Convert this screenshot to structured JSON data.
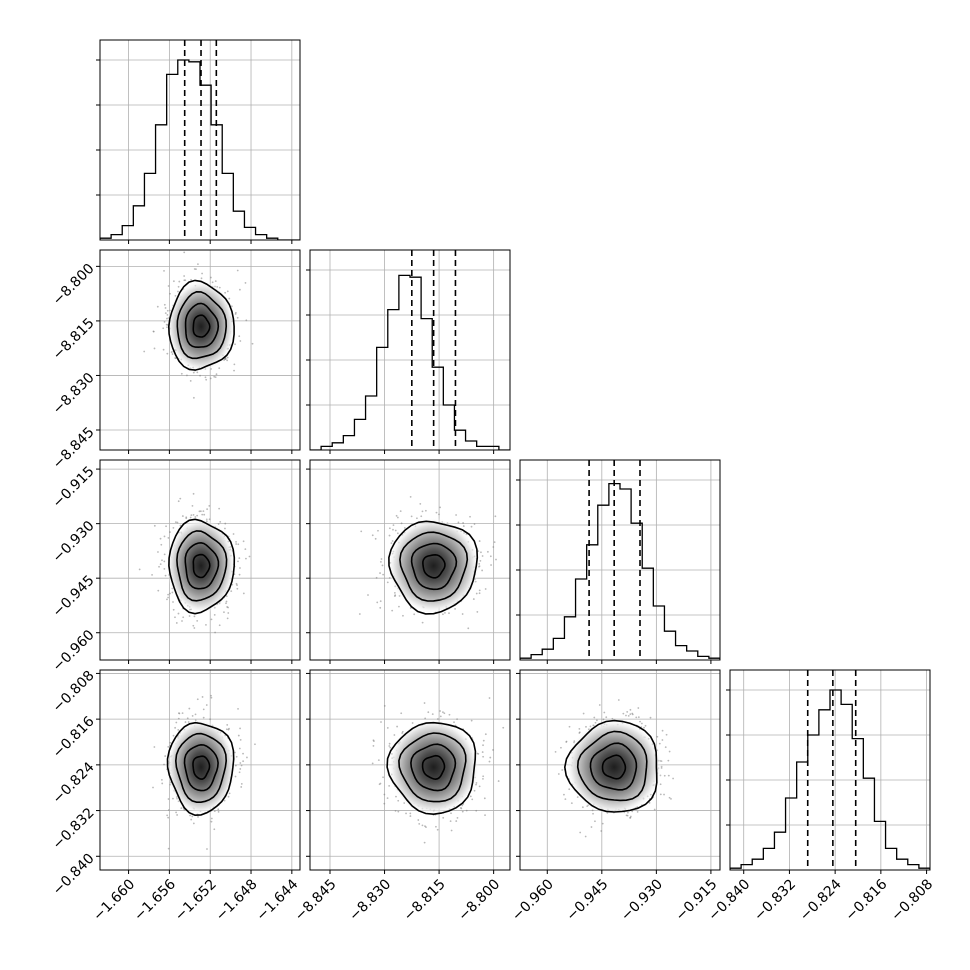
{
  "chart_data": {
    "type": "corner",
    "description_of_panels": "lower-triangular matrix of 1D histograms and 2D density contour plots",
    "parameters": [
      {
        "name": "",
        "range": [
          -1.6628,
          -1.6432
        ],
        "ticks": [
          -1.66,
          -1.656,
          -1.652,
          -1.648,
          -1.644
        ],
        "tick_labels": [
          "−1.660",
          "−1.656",
          "−1.652",
          "−1.648",
          "−1.644"
        ],
        "quantiles": [
          -1.6545,
          -1.6529,
          -1.6514
        ],
        "mean": -1.6529,
        "sigma": 0.0016,
        "hist_heights": [
          0.01,
          0.03,
          0.08,
          0.19,
          0.37,
          0.64,
          0.92,
          1.0,
          0.99,
          0.86,
          0.64,
          0.37,
          0.16,
          0.07,
          0.03,
          0.01,
          0.0,
          0.0
        ]
      },
      {
        "name": "",
        "range": [
          -8.8505,
          -8.7955
        ],
        "ticks": [
          -8.845,
          -8.83,
          -8.815,
          -8.8
        ],
        "tick_labels": [
          "−8.845",
          "−8.830",
          "−8.815",
          "−8.800"
        ],
        "quantiles": [
          -8.8225,
          -8.8165,
          -8.8105
        ],
        "mean": -8.8165,
        "sigma": 0.006,
        "hist_heights": [
          0.0,
          0.02,
          0.04,
          0.08,
          0.17,
          0.3,
          0.57,
          0.78,
          0.97,
          0.96,
          0.73,
          0.46,
          0.25,
          0.11,
          0.05,
          0.02,
          0.02,
          0.0
        ]
      },
      {
        "name": "",
        "range": [
          -0.9675,
          -0.9125
        ],
        "ticks": [
          -0.96,
          -0.945,
          -0.93,
          -0.915
        ],
        "tick_labels": [
          "−0.960",
          "−0.945",
          "−0.930",
          "−0.915"
        ],
        "quantiles": [
          -0.9485,
          -0.9416,
          -0.9345
        ],
        "mean": -0.9416,
        "sigma": 0.0063,
        "hist_heights": [
          0.01,
          0.03,
          0.06,
          0.12,
          0.24,
          0.45,
          0.64,
          0.86,
          0.98,
          0.95,
          0.76,
          0.51,
          0.3,
          0.16,
          0.08,
          0.05,
          0.02,
          0.01
        ]
      },
      {
        "name": "",
        "range": [
          -0.8424,
          -0.8074
        ],
        "ticks": [
          -0.84,
          -0.832,
          -0.824,
          -0.816,
          -0.808
        ],
        "tick_labels": [
          "−0.840",
          "−0.832",
          "−0.824",
          "−0.816",
          "−0.808"
        ],
        "quantiles": [
          -0.8288,
          -0.8244,
          -0.8204
        ],
        "mean": -0.8244,
        "sigma": 0.004,
        "hist_heights": [
          0.01,
          0.03,
          0.06,
          0.12,
          0.21,
          0.4,
          0.6,
          0.75,
          0.89,
          1.0,
          0.92,
          0.73,
          0.51,
          0.27,
          0.12,
          0.06,
          0.03,
          0.01
        ]
      }
    ],
    "contour_levels_sigma": [
      0.5,
      1.0,
      1.5,
      2.0
    ],
    "grid": true,
    "axis_label_color": "#000000",
    "contour_color": "#000000",
    "scatter_color": "#808080"
  }
}
